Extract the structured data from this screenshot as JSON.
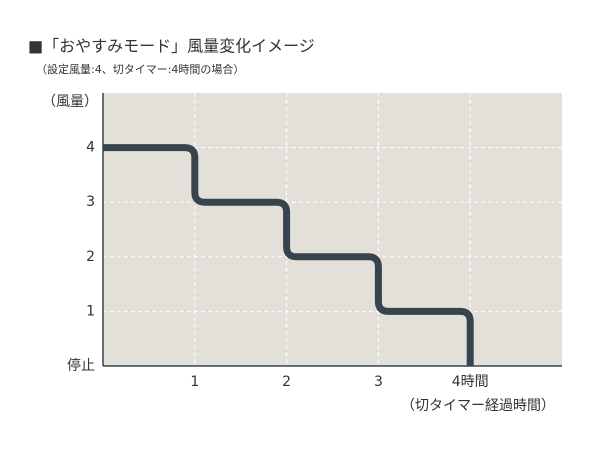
{
  "chart_data": {
    "type": "line",
    "step": "post",
    "title": "■「おやすみモード」風量変化イメージ",
    "subtitle": "（設定風量:4、切タイマー:4時間の場合）",
    "y_label": "（風量）",
    "x_label": "（切タイマー経過時間）",
    "x": [
      0,
      1,
      2,
      3,
      4
    ],
    "series": [
      {
        "name": "風量",
        "color": "#37444e",
        "values": [
          4,
          3,
          2,
          1,
          0
        ]
      }
    ],
    "xlim": [
      0,
      5
    ],
    "xticks": [
      1,
      2,
      3,
      {
        "value": 4,
        "label": "4時間"
      }
    ],
    "ylim": [
      0,
      5
    ],
    "yticks": [
      {
        "value": 0,
        "label": "停止"
      },
      1,
      2,
      3,
      4
    ],
    "grid": true,
    "background": "#e3dfd9"
  }
}
